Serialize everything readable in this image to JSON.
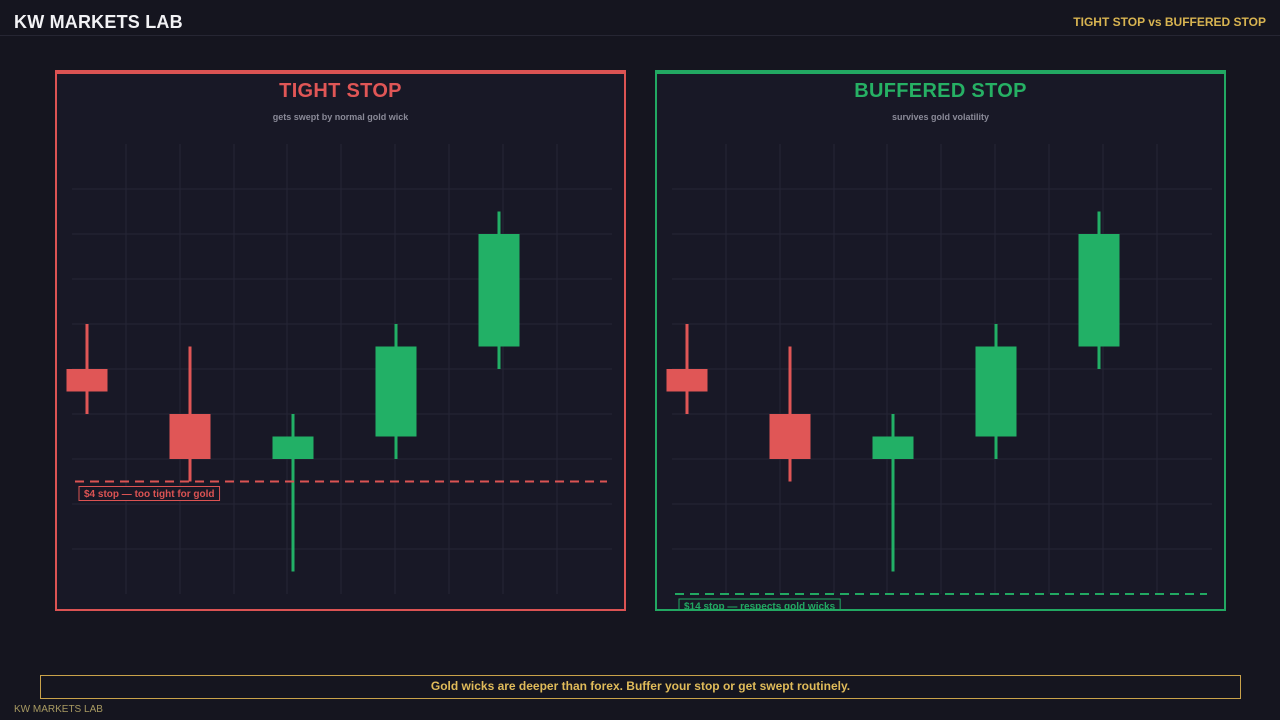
{
  "header": {
    "brand": "KW MARKETS LAB",
    "tag": "TIGHT STOP vs BUFFERED STOP"
  },
  "colors": {
    "bearish": "#e05656",
    "bullish": "#22b066",
    "tight_accent": "#db5353",
    "buffered_accent": "#22a862",
    "gold": "#d8b451",
    "grid": "#262636"
  },
  "panels": [
    {
      "title": "TIGHT STOP",
      "subtitle": "gets swept by normal gold wick",
      "stop_label": "$4 stop — too tight for gold"
    },
    {
      "title": "BUFFERED STOP",
      "subtitle": "survives gold volatility",
      "stop_label": "$14 stop — respects gold wicks"
    }
  ],
  "chart_data": [
    {
      "type": "candlestick",
      "title": "TIGHT STOP",
      "subtitle": "gets swept by normal gold wick",
      "ylim": [
        0,
        20
      ],
      "grid": true,
      "candles": [
        {
          "open": 10,
          "close": 9,
          "high": 12,
          "low": 8
        },
        {
          "open": 8,
          "close": 6,
          "high": 11,
          "low": 5
        },
        {
          "open": 6,
          "close": 7,
          "high": 8,
          "low": 1
        },
        {
          "open": 7,
          "close": 11,
          "high": 12,
          "low": 6
        },
        {
          "open": 11,
          "close": 16,
          "high": 17,
          "low": 10
        }
      ],
      "stop_level": 5,
      "annotations": [
        "$4 stop — too tight for gold"
      ]
    },
    {
      "type": "candlestick",
      "title": "BUFFERED STOP",
      "subtitle": "survives gold volatility",
      "ylim": [
        0,
        20
      ],
      "grid": true,
      "candles": [
        {
          "open": 10,
          "close": 9,
          "high": 12,
          "low": 8
        },
        {
          "open": 8,
          "close": 6,
          "high": 11,
          "low": 5
        },
        {
          "open": 6,
          "close": 7,
          "high": 8,
          "low": 1
        },
        {
          "open": 7,
          "close": 11,
          "high": 12,
          "low": 6
        },
        {
          "open": 11,
          "close": 16,
          "high": 17,
          "low": 10
        }
      ],
      "stop_level": 0,
      "annotations": [
        "$14 stop — respects gold wicks"
      ]
    }
  ],
  "footer": {
    "message": "Gold wicks are deeper than forex. Buffer your stop or get swept routinely.",
    "brand": "KW MARKETS LAB"
  }
}
